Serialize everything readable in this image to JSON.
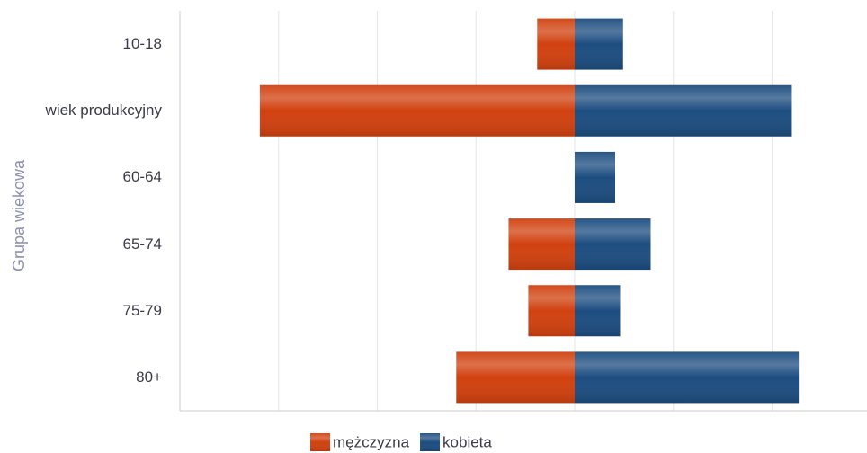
{
  "chart_data": {
    "type": "bar",
    "orientation": "horizontal",
    "y_label": "Grupa wiekowa",
    "categories": [
      "10-18",
      "wiek produkcyjny",
      "60-64",
      "65-74",
      "75-79",
      "80+"
    ],
    "series": [
      {
        "name": "mężczyzna",
        "color": "#d1410f",
        "values": [
          -38,
          -319,
          0,
          -67,
          -47,
          -120
        ]
      },
      {
        "name": "kobieta",
        "color": "#1d4d80",
        "values": [
          49,
          220,
          41,
          77,
          46,
          227
        ]
      }
    ],
    "xlim": [
      -400,
      290
    ],
    "xticks": [
      -400,
      -300,
      -200,
      -100,
      0,
      100,
      200
    ],
    "grid": true
  }
}
